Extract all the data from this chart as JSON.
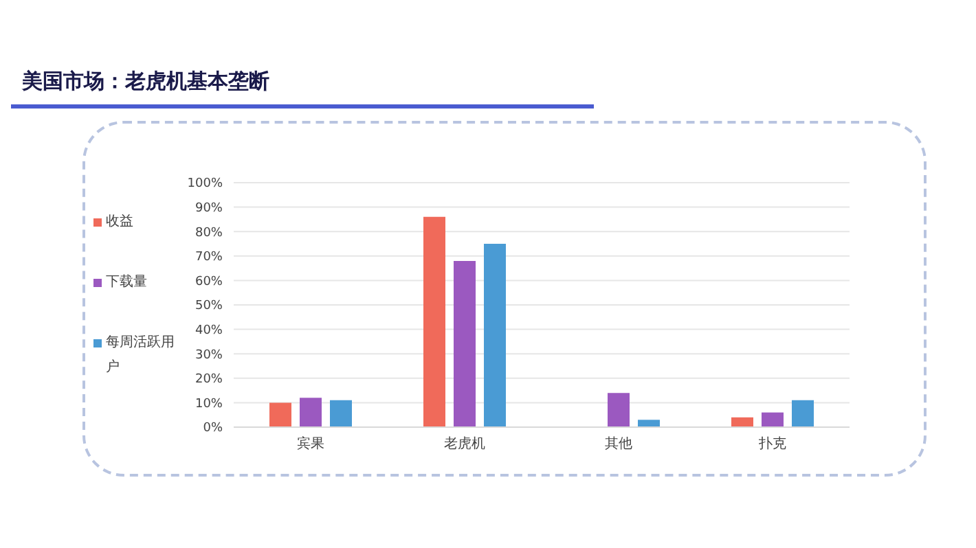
{
  "chart_data": {
    "type": "bar",
    "title": "美国市场：老虎机基本垄断",
    "categories": [
      "宾果",
      "老虎机",
      "其他",
      "扑克"
    ],
    "series": [
      {
        "name": "收益",
        "color": "#f06a5a",
        "values": [
          10,
          86,
          0,
          4
        ]
      },
      {
        "name": "下载量",
        "color": "#9b59c0",
        "values": [
          12,
          68,
          14,
          6
        ]
      },
      {
        "name": "每周活跃用户",
        "color": "#4a9bd4",
        "values": [
          11,
          75,
          3,
          11
        ]
      }
    ],
    "ylim": [
      0,
      100
    ],
    "yticks": [
      {
        "value": 0,
        "label": "0%"
      },
      {
        "value": 10,
        "label": "10%"
      },
      {
        "value": 20,
        "label": "20%"
      },
      {
        "value": 30,
        "label": "30%"
      },
      {
        "value": 40,
        "label": "40%"
      },
      {
        "value": 50,
        "label": "50%"
      },
      {
        "value": 60,
        "label": "60%"
      },
      {
        "value": 70,
        "label": "70%"
      },
      {
        "value": 80,
        "label": "80%"
      },
      {
        "value": 90,
        "label": "90%"
      },
      {
        "value": 100,
        "label": "100%"
      }
    ],
    "grid": "y",
    "legend": "left"
  }
}
